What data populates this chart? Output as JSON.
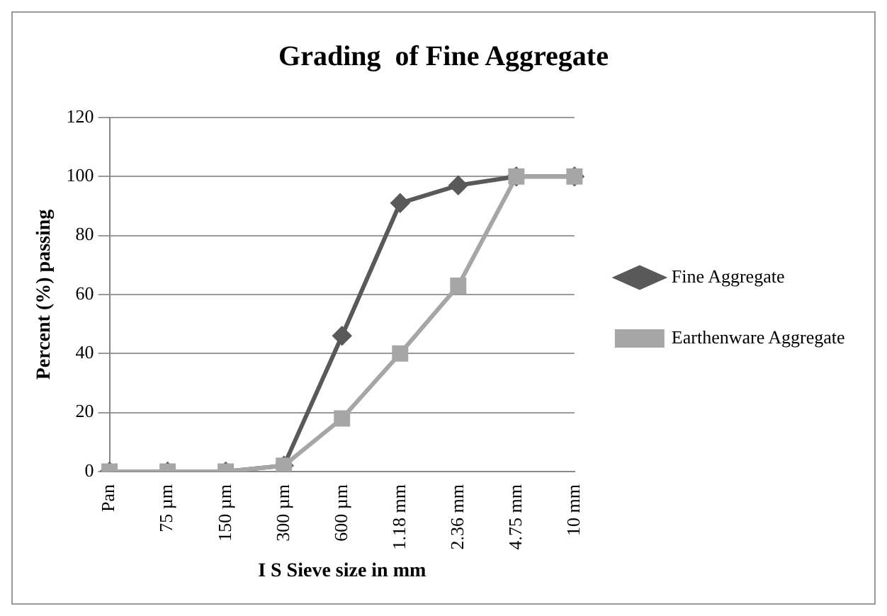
{
  "chart_data": {
    "type": "line",
    "title": "Grading  of Fine Aggregate",
    "xlabel": "I S Sieve size in mm",
    "ylabel": "Percent (%) passing",
    "categories": [
      "Pan",
      "75 µm",
      "150 µm",
      "300 µm",
      "600 µm",
      "1.18 mm",
      "2.36 mm",
      "4.75 mm",
      "10 mm"
    ],
    "series": [
      {
        "name": "Fine Aggregate",
        "color": "#595959",
        "marker": "diamond",
        "values": [
          0,
          0,
          0,
          2,
          46,
          91,
          97,
          100,
          100
        ]
      },
      {
        "name": "Earthenware Aggregate",
        "color": "#a6a6a6",
        "marker": "square",
        "values": [
          0,
          0,
          0,
          2,
          18,
          40,
          63,
          100,
          100
        ]
      }
    ],
    "ylim": [
      0,
      120
    ],
    "yticks": [
      0,
      20,
      40,
      60,
      80,
      100,
      120
    ],
    "grid": "y",
    "legend": "right"
  }
}
